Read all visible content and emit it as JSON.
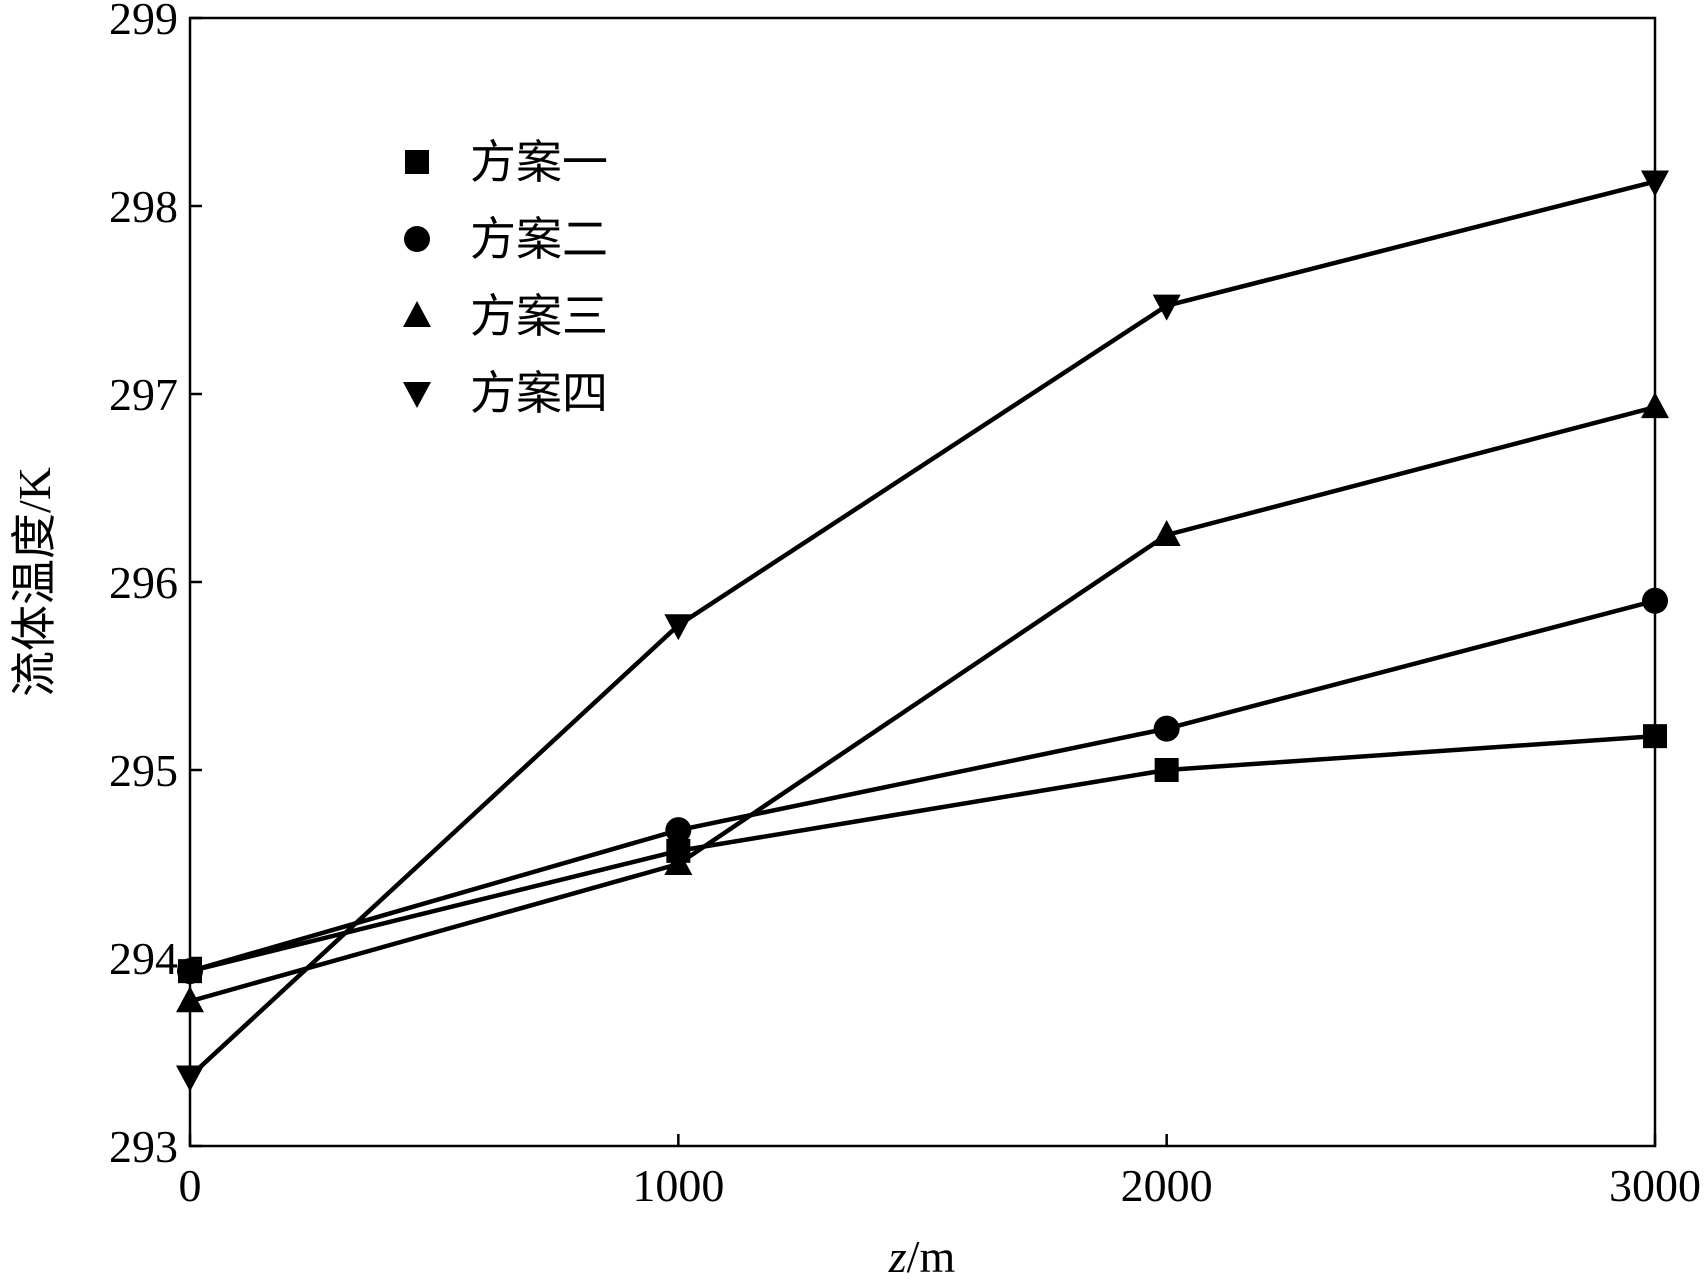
{
  "chart_data": {
    "type": "line",
    "xlabel_var": "z",
    "xlabel_unit": "/m",
    "ylabel": "流体温度/K",
    "xlim": [
      0,
      3000
    ],
    "ylim": [
      293,
      299
    ],
    "x_ticks": [
      "0",
      "1000",
      "2000",
      "3000"
    ],
    "y_ticks": [
      "293",
      "294",
      "295",
      "296",
      "297",
      "298",
      "299"
    ],
    "grid": false,
    "legend_position": "top-left",
    "x": [
      0,
      1000,
      2000,
      3000
    ],
    "series": [
      {
        "name": "方案一",
        "marker": "square",
        "values": [
          293.93,
          294.57,
          295.0,
          295.18
        ]
      },
      {
        "name": "方案二",
        "marker": "circle",
        "values": [
          293.93,
          294.68,
          295.22,
          295.9
        ]
      },
      {
        "name": "方案三",
        "marker": "triangle-up",
        "values": [
          293.77,
          294.5,
          296.25,
          296.93
        ]
      },
      {
        "name": "方案四",
        "marker": "triangle-down",
        "values": [
          293.37,
          295.77,
          297.47,
          298.13
        ]
      }
    ]
  }
}
